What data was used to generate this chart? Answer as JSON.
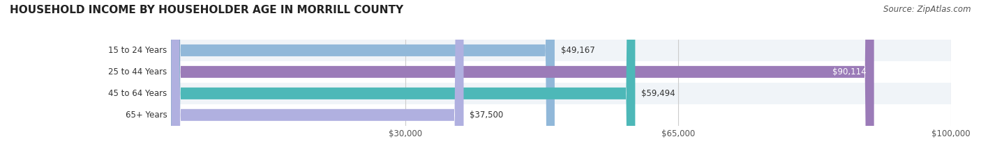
{
  "title": "HOUSEHOLD INCOME BY HOUSEHOLDER AGE IN MORRILL COUNTY",
  "source": "Source: ZipAtlas.com",
  "categories": [
    "15 to 24 Years",
    "25 to 44 Years",
    "45 to 64 Years",
    "65+ Years"
  ],
  "values": [
    49167,
    90114,
    59494,
    37500
  ],
  "bar_colors": [
    "#91b8d9",
    "#9b7bb8",
    "#4db8b8",
    "#b0b0e0"
  ],
  "value_labels": [
    "$49,167",
    "$90,114",
    "$59,494",
    "$37,500"
  ],
  "label_inside": [
    false,
    true,
    false,
    false
  ],
  "xmax": 100000,
  "xticks": [
    0,
    30000,
    65000,
    100000
  ],
  "xtick_labels": [
    "",
    "$30,000",
    "$65,000",
    "$100,000"
  ],
  "bg_colors": [
    "#f0f4f8",
    "#ffffff",
    "#f0f4f8",
    "#ffffff"
  ],
  "title_fontsize": 11,
  "source_fontsize": 8.5,
  "bar_height": 0.55
}
